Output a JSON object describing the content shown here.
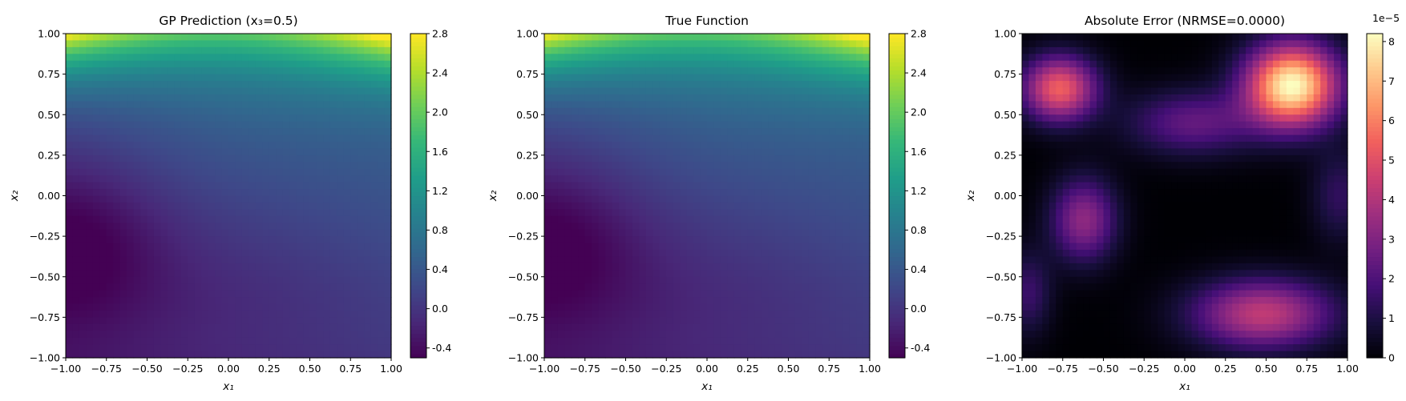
{
  "panels": [
    {
      "title": "GP Prediction (x₃=0.5)",
      "colormap": "viridis",
      "cbar_ticks": [
        "-0.4",
        "0.0",
        "0.4",
        "0.8",
        "1.2",
        "1.6",
        "2.0",
        "2.4",
        "2.8"
      ],
      "cbar_range": [
        -0.5,
        2.8
      ],
      "cbar_offset": ""
    },
    {
      "title": "True Function",
      "colormap": "viridis",
      "cbar_ticks": [
        "-0.4",
        "0.0",
        "0.4",
        "0.8",
        "1.2",
        "1.6",
        "2.0",
        "2.4",
        "2.8"
      ],
      "cbar_range": [
        -0.5,
        2.8
      ],
      "cbar_offset": ""
    },
    {
      "title": "Absolute Error (NRMSE=0.0000)",
      "colormap": "magma",
      "cbar_ticks": [
        "0",
        "1",
        "2",
        "3",
        "4",
        "5",
        "6",
        "7",
        "8"
      ],
      "cbar_range": [
        0,
        8.2
      ],
      "cbar_offset": "1e−5"
    }
  ],
  "axes": {
    "x_ticks": [
      "−1.00",
      "−0.75",
      "−0.50",
      "−0.25",
      "0.00",
      "0.25",
      "0.50",
      "0.75",
      "1.00"
    ],
    "y_ticks": [
      "−1.00",
      "−0.75",
      "−0.50",
      "−0.25",
      "0.00",
      "0.25",
      "0.50",
      "0.75",
      "1.00"
    ],
    "xlabel": "x₁",
    "ylabel": "x₂"
  },
  "chart_data": [
    {
      "type": "heatmap",
      "title": "GP Prediction (x₃=0.5)",
      "xlabel": "x1",
      "ylabel": "x2",
      "xlim": [
        -1,
        1
      ],
      "ylim": [
        -1,
        1
      ],
      "colorbar_range": [
        -0.5,
        2.8
      ],
      "colormap": "viridis",
      "grid": false,
      "notes_values": {
        "max": 2.8,
        "min": -0.45
      }
    },
    {
      "type": "heatmap",
      "title": "True Function",
      "xlabel": "x1",
      "ylabel": "x2",
      "xlim": [
        -1,
        1
      ],
      "ylim": [
        -1,
        1
      ],
      "colorbar_range": [
        -0.5,
        2.8
      ],
      "colormap": "viridis",
      "grid": false,
      "notes_values": {
        "max": 2.8,
        "min": -0.45
      }
    },
    {
      "type": "heatmap",
      "title": "Absolute Error (NRMSE=0.0000)",
      "xlabel": "x1",
      "ylabel": "x2",
      "xlim": [
        -1,
        1
      ],
      "ylim": [
        -1,
        1
      ],
      "colorbar_range": [
        0,
        8.2e-05
      ],
      "colormap": "magma",
      "grid": false
    }
  ]
}
